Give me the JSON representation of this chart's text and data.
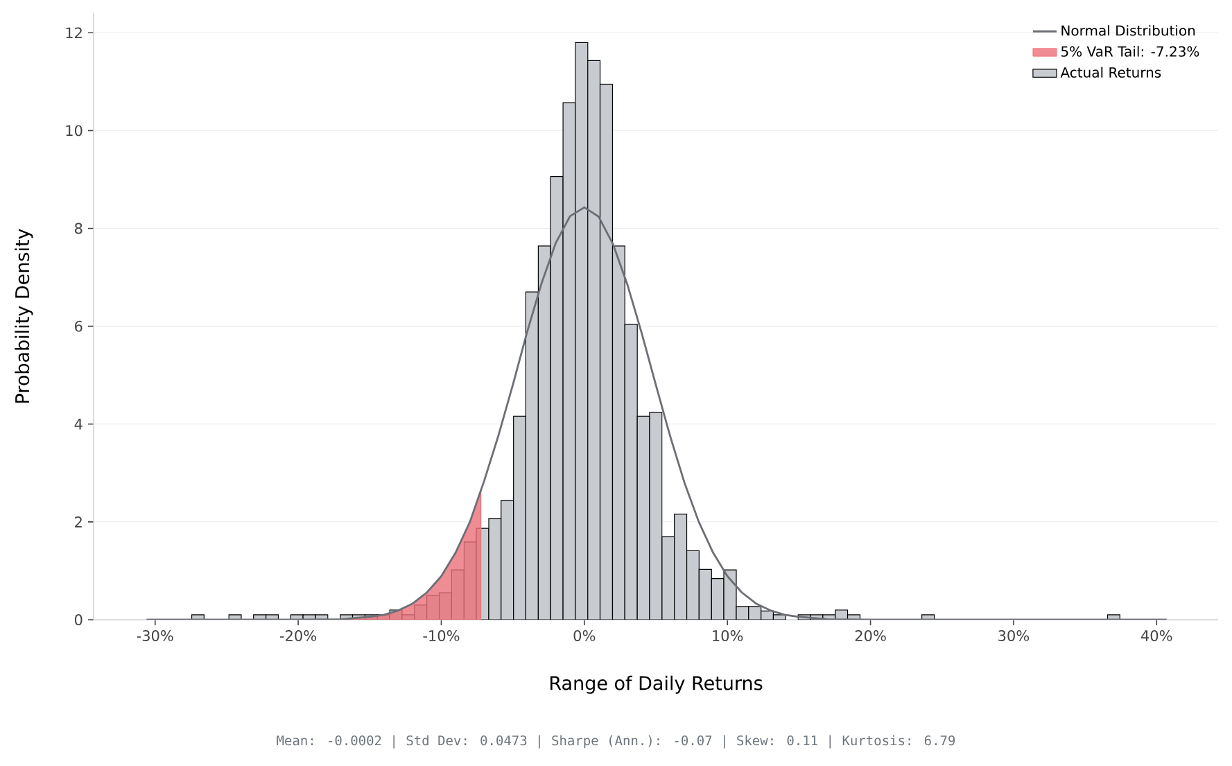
{
  "chart_data": {
    "type": "histogram",
    "xlabel": "Range of Daily Returns",
    "ylabel": "Probability Density",
    "annotations": [
      "Mean: -0.0002  |  Std Dev: 0.0473  |  Sharpe (Ann.): -0.07  |  Skew: 0.11  |  Kurtosis: 6.79"
    ],
    "bins": [
      -27.44,
      -26.58,
      -25.71,
      -24.85,
      -23.98,
      -23.12,
      -22.25,
      -21.39,
      -20.52,
      -19.66,
      -18.79,
      -17.93,
      -17.06,
      -16.2,
      -15.33,
      -14.47,
      -13.6,
      -12.74,
      -11.87,
      -11.01,
      -10.14,
      -9.28,
      -8.41,
      -7.55,
      -6.68,
      -5.82,
      -4.95,
      -4.09,
      -3.22,
      -2.36,
      -1.49,
      -0.63,
      0.24,
      1.1,
      1.97,
      2.83,
      3.7,
      4.56,
      5.43,
      6.29,
      7.16,
      8.02,
      8.89,
      9.75,
      10.62,
      11.48,
      12.35,
      13.21,
      14.08,
      14.94,
      15.81,
      16.67,
      17.54,
      18.4,
      19.27,
      20.13,
      21.0,
      21.86,
      22.73,
      23.59,
      24.46,
      25.32,
      26.19,
      27.05,
      27.92,
      28.78,
      29.65,
      30.51,
      31.38,
      32.24,
      33.11,
      33.97,
      34.84,
      35.7,
      36.57,
      37.43
    ],
    "series": [
      {
        "type": "line",
        "name": "Normal Distribution",
        "color": "#6c6f75",
        "x": [
          -30.6,
          -20,
          -17,
          -15,
          -14,
          -13,
          -12,
          -11,
          -10,
          -9,
          -8,
          -7,
          -6,
          -5,
          -4,
          -3,
          -2,
          -1,
          0,
          1,
          2,
          3,
          4,
          5,
          6,
          7,
          8,
          9,
          10,
          11,
          12,
          13,
          14,
          15,
          17,
          20,
          30,
          40.7
        ],
        "values": [
          0,
          0,
          0.01,
          0.06,
          0.1,
          0.19,
          0.33,
          0.56,
          0.89,
          1.37,
          2.0,
          2.84,
          3.77,
          4.8,
          5.88,
          6.87,
          7.7,
          8.25,
          8.43,
          8.24,
          7.68,
          6.86,
          5.87,
          4.8,
          3.75,
          2.8,
          2.0,
          1.37,
          0.89,
          0.56,
          0.33,
          0.19,
          0.1,
          0.06,
          0.01,
          0,
          0,
          0
        ]
      },
      {
        "type": "area",
        "name": "5% VaR Tail: -7.23%",
        "color": "#ec7079",
        "x": [
          -30.6,
          -20,
          -17,
          -15,
          -14,
          -13,
          -12,
          -11,
          -10,
          -9,
          -8,
          -7.23
        ],
        "values": [
          0,
          0,
          0.01,
          0.06,
          0.1,
          0.19,
          0.33,
          0.56,
          0.89,
          1.37,
          2.0,
          2.64
        ]
      },
      {
        "name": "Actual Returns",
        "color": "#c8ccd1",
        "values": [
          0.1,
          0,
          0,
          0.1,
          0,
          0.1,
          0.1,
          0,
          0.1,
          0.1,
          0.1,
          0,
          0.1,
          0.1,
          0.1,
          0.1,
          0.2,
          0.1,
          0.3,
          0.5,
          0.55,
          1.02,
          1.59,
          1.87,
          2.07,
          2.44,
          4.16,
          6.7,
          7.64,
          9.06,
          10.57,
          11.8,
          11.43,
          10.95,
          7.64,
          6.04,
          4.16,
          4.24,
          1.7,
          2.16,
          1.41,
          1.03,
          0.84,
          1.02,
          0.27,
          0.27,
          0.18,
          0.1,
          0,
          0.1,
          0.1,
          0.1,
          0.2,
          0.1,
          0,
          0,
          0,
          0,
          0,
          0.1,
          0,
          0,
          0,
          0,
          0,
          0,
          0,
          0,
          0,
          0,
          0,
          0,
          0,
          0,
          0.1
        ]
      }
    ],
    "xlim": [
      -34.3,
      44.3
    ],
    "ylim": [
      0,
      12.4
    ],
    "xticks": [
      {
        "value": -30,
        "label": "-30%"
      },
      {
        "value": -20,
        "label": "-20%"
      },
      {
        "value": -10,
        "label": "-10%"
      },
      {
        "value": 0,
        "label": "0%"
      },
      {
        "value": 10,
        "label": "10%"
      },
      {
        "value": 20,
        "label": "20%"
      },
      {
        "value": 30,
        "label": "30%"
      },
      {
        "value": 40,
        "label": "40%"
      }
    ],
    "yticks": [
      0,
      2,
      4,
      6,
      8,
      10,
      12
    ],
    "grid": "y",
    "legend": "top right"
  }
}
